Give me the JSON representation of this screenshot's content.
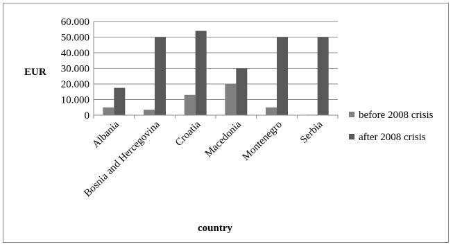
{
  "chart_data": {
    "type": "bar",
    "title": "",
    "xlabel": "country",
    "ylabel": "EUR",
    "ylim": [
      0,
      60000
    ],
    "y_ticks": [
      0,
      10000,
      20000,
      30000,
      40000,
      50000,
      60000
    ],
    "y_tick_labels": [
      "0",
      "10.000",
      "20.000",
      "30.000",
      "40.000",
      "50.000",
      "60.000"
    ],
    "grid": true,
    "legend_position": "right",
    "categories": [
      "Albania",
      "Bosnia and Hercegovina",
      "Croatia",
      "Macedonia",
      "Montenegro",
      "Serbia"
    ],
    "series": [
      {
        "name": "before 2008 crisis",
        "color": "#808080",
        "values": [
          5000,
          3500,
          13000,
          20000,
          5000,
          300
        ]
      },
      {
        "name": "after 2008 crisis",
        "color": "#595959",
        "values": [
          17500,
          50000,
          54000,
          30000,
          50000,
          50000
        ]
      }
    ]
  }
}
